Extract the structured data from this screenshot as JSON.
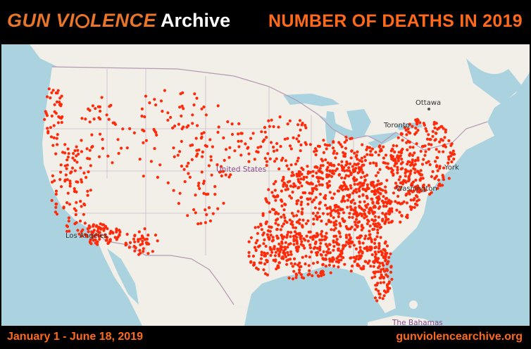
{
  "header": {
    "logo_part1": "GUN VI",
    "logo_part2": "LENCE",
    "logo_part3": "Archive",
    "headline": "NUMBER OF DEATHS IN 2019"
  },
  "map": {
    "labels": {
      "ottawa": "Ottawa",
      "toronto": "Toronto",
      "united_states": "United States",
      "new_york": "York",
      "washington": "Washington",
      "los_angeles": "Los Angeles",
      "bahamas": "The Bahamas"
    },
    "colors": {
      "land": "#f2efe9",
      "water": "#aad3df",
      "dots": "#ff2a0a",
      "borders": "#b9a9b9"
    }
  },
  "footer": {
    "date_range": "January 1 - June 18, 2019",
    "website": "gunviolencearchive.org"
  }
}
